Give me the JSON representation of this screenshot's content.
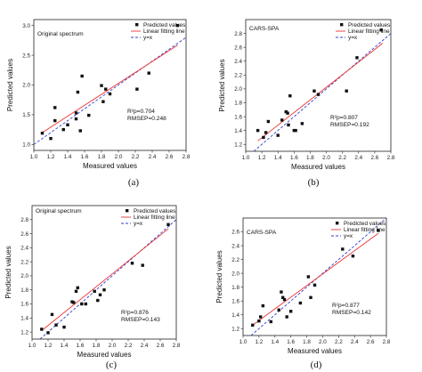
{
  "colors": {
    "points": "#111111",
    "fit": "#ee3333",
    "identity": "#2f3fc8",
    "axis": "#222222"
  },
  "chart_data": [
    {
      "type": "scatter",
      "panel_label": "(a)",
      "annotation": "Original spectrum",
      "xlabel": "Measured values",
      "ylabel": "Predicted values",
      "xlim": [
        1.0,
        2.8
      ],
      "ylim": [
        0.9,
        3.1
      ],
      "xticks": [
        "1.0",
        "1.2",
        "1.4",
        "1.6",
        "1.8",
        "2.0",
        "2.2",
        "2.4",
        "2.6",
        "2.8"
      ],
      "yticks": [
        "1.0",
        "1.5",
        "2.0",
        "2.5",
        "3.0"
      ],
      "legend": [
        "Predicted values",
        "Linear fitting line",
        "y=x"
      ],
      "stats": [
        "R²p=0.704",
        "RMSEP=0.248"
      ],
      "points": [
        [
          1.1,
          1.19
        ],
        [
          1.2,
          1.1
        ],
        [
          1.25,
          1.4
        ],
        [
          1.25,
          1.62
        ],
        [
          1.35,
          1.25
        ],
        [
          1.4,
          1.33
        ],
        [
          1.5,
          1.53
        ],
        [
          1.5,
          1.43
        ],
        [
          1.52,
          1.88
        ],
        [
          1.55,
          1.23
        ],
        [
          1.57,
          2.15
        ],
        [
          1.65,
          1.49
        ],
        [
          1.8,
          1.99
        ],
        [
          1.82,
          1.72
        ],
        [
          1.85,
          1.93
        ],
        [
          1.9,
          1.85
        ],
        [
          2.22,
          1.93
        ],
        [
          2.36,
          2.2
        ],
        [
          2.7,
          3.0
        ]
      ],
      "fit": [
        [
          1.1,
          1.2
        ],
        [
          2.7,
          2.67
        ]
      ]
    },
    {
      "type": "scatter",
      "panel_label": "(b)",
      "annotation": "CARS-SPA",
      "xlabel": "Measured values",
      "ylabel": "Predicted values",
      "xlim": [
        1.0,
        2.8
      ],
      "ylim": [
        1.1,
        3.0
      ],
      "xticks": [
        "1.0",
        "1.2",
        "1.4",
        "1.6",
        "1.8",
        "2.0",
        "2.2",
        "2.4",
        "2.6",
        "2.8"
      ],
      "yticks": [
        "1.2",
        "1.4",
        "1.6",
        "1.8",
        "2.0",
        "2.2",
        "2.4",
        "2.6",
        "2.8"
      ],
      "legend": [
        "Predicted values",
        "Linear fitting line",
        "y=x"
      ],
      "stats": [
        "R²p=0.807",
        "RMSEP=0.192"
      ],
      "points": [
        [
          1.15,
          1.4
        ],
        [
          1.22,
          1.3
        ],
        [
          1.25,
          1.37
        ],
        [
          1.28,
          1.53
        ],
        [
          1.4,
          1.33
        ],
        [
          1.45,
          1.55
        ],
        [
          1.5,
          1.67
        ],
        [
          1.52,
          1.65
        ],
        [
          1.53,
          1.48
        ],
        [
          1.55,
          1.9
        ],
        [
          1.6,
          1.4
        ],
        [
          1.62,
          1.4
        ],
        [
          1.7,
          1.5
        ],
        [
          1.85,
          1.97
        ],
        [
          1.9,
          1.92
        ],
        [
          2.25,
          1.97
        ],
        [
          2.38,
          2.45
        ],
        [
          2.68,
          2.85
        ]
      ],
      "fit": [
        [
          1.15,
          1.25
        ],
        [
          2.7,
          2.66
        ]
      ]
    },
    {
      "type": "scatter",
      "panel_label": "(c)",
      "annotation": "Original spectrum",
      "xlabel": "Measured values",
      "ylabel": "Predicted values",
      "xlim": [
        1.0,
        2.8
      ],
      "ylim": [
        1.1,
        3.0
      ],
      "xticks": [
        "1.0",
        "1.2",
        "1.4",
        "1.6",
        "1.8",
        "2.0",
        "2.2",
        "2.4",
        "2.6",
        "2.8"
      ],
      "yticks": [
        "1.2",
        "1.4",
        "1.6",
        "1.8",
        "2.0",
        "2.2",
        "2.4",
        "2.6",
        "2.8"
      ],
      "legend": [
        "Predicted values",
        "Linear fitting line",
        "y=x"
      ],
      "stats": [
        "R²p=0.876",
        "RMSEP=0.143"
      ],
      "points": [
        [
          1.12,
          1.24
        ],
        [
          1.2,
          1.19
        ],
        [
          1.25,
          1.45
        ],
        [
          1.3,
          1.3
        ],
        [
          1.4,
          1.27
        ],
        [
          1.5,
          1.63
        ],
        [
          1.52,
          1.62
        ],
        [
          1.55,
          1.78
        ],
        [
          1.57,
          1.83
        ],
        [
          1.62,
          1.6
        ],
        [
          1.67,
          1.6
        ],
        [
          1.78,
          1.78
        ],
        [
          1.82,
          1.65
        ],
        [
          1.85,
          1.73
        ],
        [
          1.9,
          1.8
        ],
        [
          2.25,
          2.18
        ],
        [
          2.38,
          2.15
        ],
        [
          2.7,
          2.73
        ]
      ],
      "fit": [
        [
          1.12,
          1.22
        ],
        [
          2.7,
          2.67
        ]
      ]
    },
    {
      "type": "scatter",
      "panel_label": "(d)",
      "annotation": "CARS-SPA",
      "xlabel": "Measured values",
      "ylabel": "Predicted values",
      "xlim": [
        1.0,
        2.8
      ],
      "ylim": [
        1.1,
        2.8
      ],
      "xticks": [
        "1.0",
        "1.2",
        "1.4",
        "1.6",
        "1.8",
        "2.0",
        "2.2",
        "2.4",
        "2.6",
        "2.8"
      ],
      "yticks": [
        "1.2",
        "1.4",
        "1.6",
        "1.8",
        "2.0",
        "2.2",
        "2.4",
        "2.6"
      ],
      "legend": [
        "Predicted values",
        "Linear fitting line",
        "y=x"
      ],
      "stats": [
        "R²p=0.877",
        "RMSEP=0.142"
      ],
      "points": [
        [
          1.12,
          1.25
        ],
        [
          1.2,
          1.31
        ],
        [
          1.22,
          1.37
        ],
        [
          1.25,
          1.53
        ],
        [
          1.35,
          1.3
        ],
        [
          1.45,
          1.47
        ],
        [
          1.48,
          1.73
        ],
        [
          1.5,
          1.65
        ],
        [
          1.52,
          1.62
        ],
        [
          1.55,
          1.37
        ],
        [
          1.6,
          1.45
        ],
        [
          1.72,
          1.57
        ],
        [
          1.82,
          1.95
        ],
        [
          1.85,
          1.65
        ],
        [
          1.9,
          1.83
        ],
        [
          2.25,
          2.35
        ],
        [
          2.38,
          2.25
        ],
        [
          2.7,
          2.62
        ]
      ],
      "fit": [
        [
          1.12,
          1.25
        ],
        [
          2.7,
          2.58
        ]
      ]
    }
  ]
}
